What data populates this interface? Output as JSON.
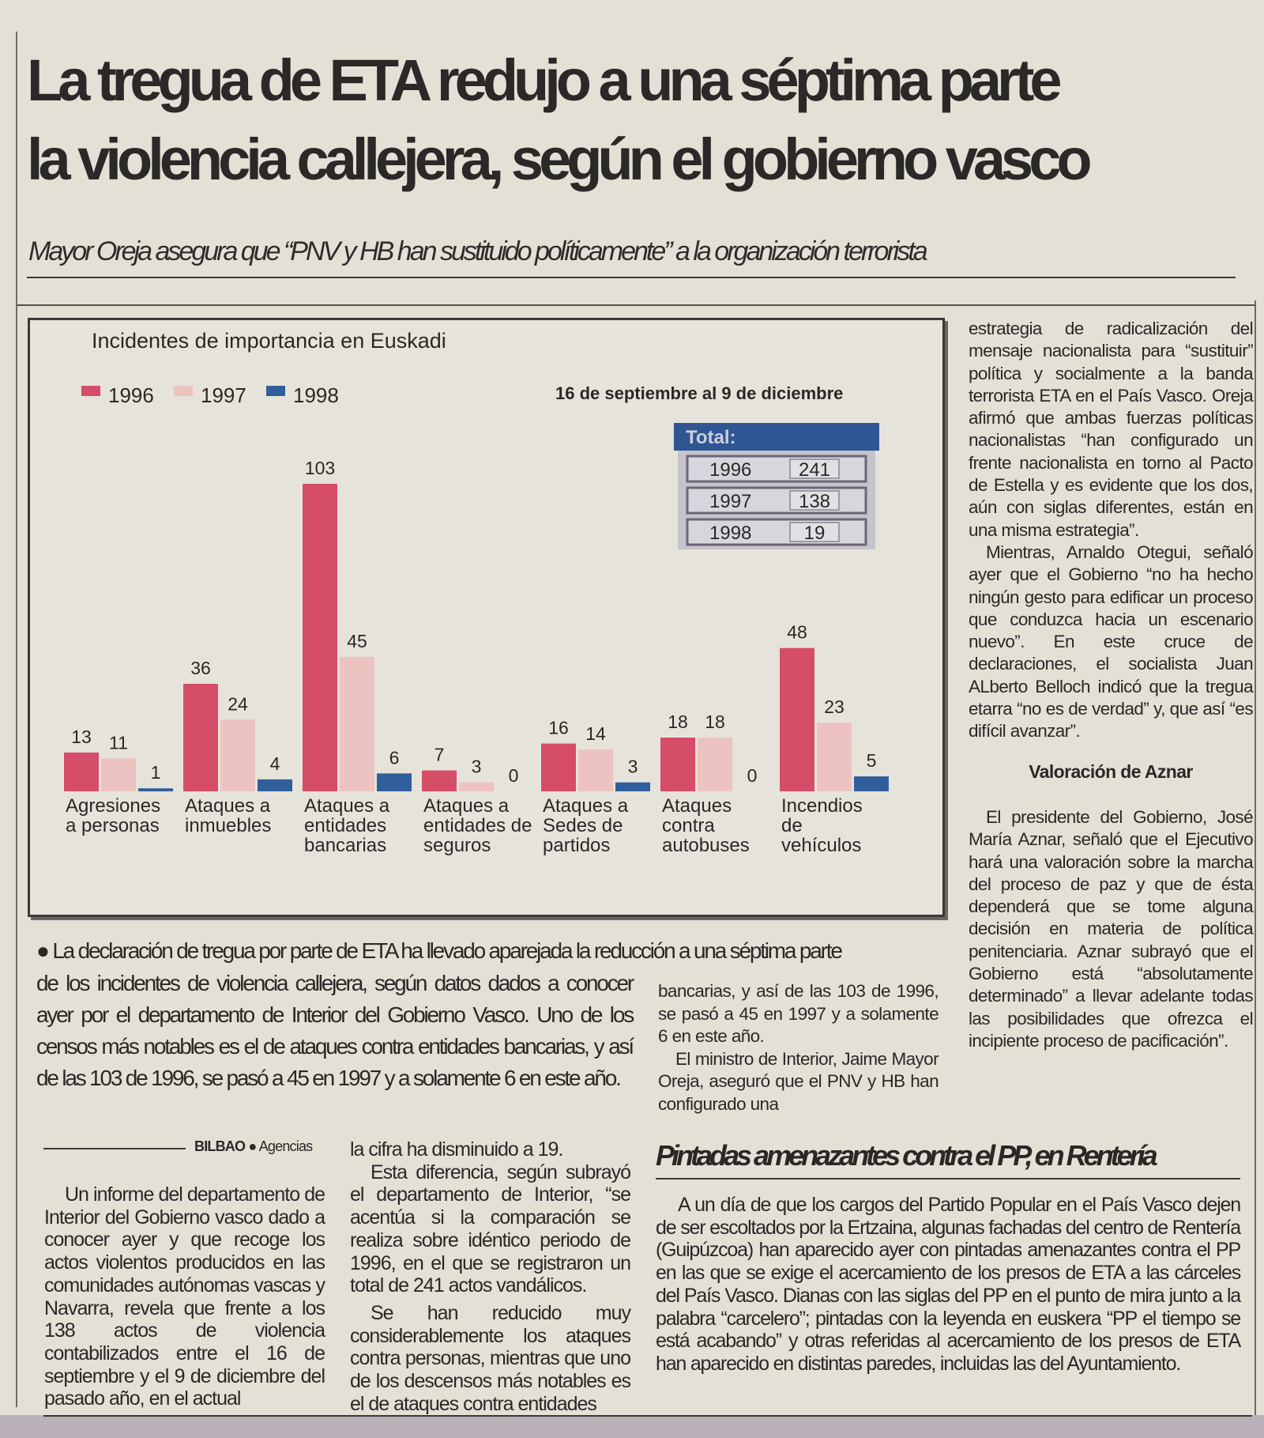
{
  "headline": {
    "line1": "La tregua de ETA redujo a una séptima parte",
    "line2": "la violencia callejera, según el gobierno vasco"
  },
  "subtitle": "Mayor Oreja asegura que “PNV y HB han sustituido políticamente” a la organización terrorista",
  "chart_data": {
    "type": "bar",
    "title": "Incidentes de importancia en Euskadi",
    "subtitle": "16 de septiembre al 9 de diciembre",
    "legend_placement": "top-left",
    "categories": [
      [
        "Agresiones",
        "a personas"
      ],
      [
        "Ataques a",
        "inmuebles"
      ],
      [
        "Ataques a",
        "entidades",
        "bancarias"
      ],
      [
        "Ataques a",
        "entidades de",
        "seguros"
      ],
      [
        "Ataques a",
        "Sedes de",
        "partidos"
      ],
      [
        "Ataques",
        "contra",
        "autobuses"
      ],
      [
        "Incendios",
        "de",
        "vehículos"
      ]
    ],
    "series": [
      {
        "name": "1996",
        "color": "#d64d68",
        "values": [
          13,
          36,
          103,
          7,
          16,
          18,
          48
        ]
      },
      {
        "name": "1997",
        "color": "#ecc3c1",
        "values": [
          11,
          24,
          45,
          3,
          14,
          18,
          23
        ]
      },
      {
        "name": "1998",
        "color": "#2f5e9b",
        "values": [
          1,
          4,
          6,
          0,
          3,
          0,
          5
        ]
      }
    ],
    "ylim": [
      0,
      110
    ],
    "totals": {
      "header": "Total:",
      "rows": [
        {
          "year": "1996",
          "value": "241"
        },
        {
          "year": "1997",
          "value": "138"
        },
        {
          "year": "1998",
          "value": "19"
        }
      ]
    }
  },
  "right_column": {
    "p1": "estrategia de radicalización del mensaje nacionalista para “sustituir” política y socialmente a la banda terrorista ETA en el País Vasco. Oreja afirmó que ambas fuerzas políticas nacionalistas “han configurado un frente nacionalista en torno al Pacto de Estella y es evidente que los dos, aún con siglas diferentes, están en una misma estrategia”.",
    "p2": "Mientras, Arnaldo Otegui, señaló ayer que el Gobierno “no ha hecho ningún gesto para edificar un proceso que conduzca hacia un escenario nuevo”. En este cruce de declaraciones, el socialista Juan ALberto Belloch indicó que la tregua etarra “no es de verdad” y, que así “es difícil avanzar”.",
    "subhead": "Valoración de Aznar",
    "p3": "El presidente del Gobierno, José María Aznar, señaló que el Ejecutivo hará una valoración sobre la marcha del proceso de paz y que de ésta dependerá que se tome alguna decisión en materia de política penitenciaria. Aznar subrayó que el Gobierno está “absolutamente determinado” a llevar adelante todas las posibilidades que ofrezca el incipiente proceso de pacificación”."
  },
  "lead": {
    "bullet": "●",
    "line1": "La declaración de tregua por parte de ETA ha llevado aparejada la reducción a una séptima parte",
    "rest": "de los incidentes de violencia callejera, según datos dados a conocer ayer por el departamento de Interior del Gobierno Vasco. Uno de los censos más notables es el de ataques contra entidades bancarias, y así de las 103 de 1996, se pasó a 45 en 1997 y a solamente 6 en este año."
  },
  "middle_column": {
    "p1": "bancarias, y así de las 103 de 1996, se pasó a 45 en 1997 y a solamente 6 en este año.",
    "p2": "El ministro de Interior, Jaime Mayor Oreja, aseguró que el PNV y HB han configurado una"
  },
  "byline": {
    "city": "BILBAO",
    "separator": "●",
    "source": "Agencias"
  },
  "body_col1": {
    "p1": "Un informe del departamento de Interior del Gobierno vasco dado a conocer ayer y que recoge los actos violentos producidos en las comunidades autónomas vascas y Navarra, revela que frente a los 138 actos de violencia contabilizados entre el 16 de septiembre y el 9 de diciembre del pasado año, en el actual"
  },
  "body_col2": {
    "p0": "la cifra ha disminuido a 19.",
    "p1": "Esta diferencia, según subrayó el departamento de Interior, “se acentúa si la comparación se realiza sobre idéntico periodo de 1996, en el que se registraron un total de 241 actos vandálicos.",
    "p2": "Se han reducido muy considerablemente los ataques contra personas, mientras que uno de los descensos más notables es el de ataques contra entidades"
  },
  "side_article": {
    "title": "Pintadas amenazantes contra el PP, en Rentería",
    "body": "A un día de que los cargos del Partido Popular en el País Vasco dejen de ser escoltados por la Ertzaina, algunas fachadas del centro de Rentería (Guipúzcoa) han aparecido ayer con pintadas amenazantes contra el PP en las que se exige el acercamiento de los presos de ETA a las cárceles del País Vasco. Dianas con las siglas del PP en el punto de mira junto a la palabra “carcelero”; pintadas con la leyenda en euskera “PP el tiempo se está acabando” y otras referidas al acercamiento de los presos de ETA han aparecido en distintas paredes, incluidas las del Ayuntamiento."
  }
}
